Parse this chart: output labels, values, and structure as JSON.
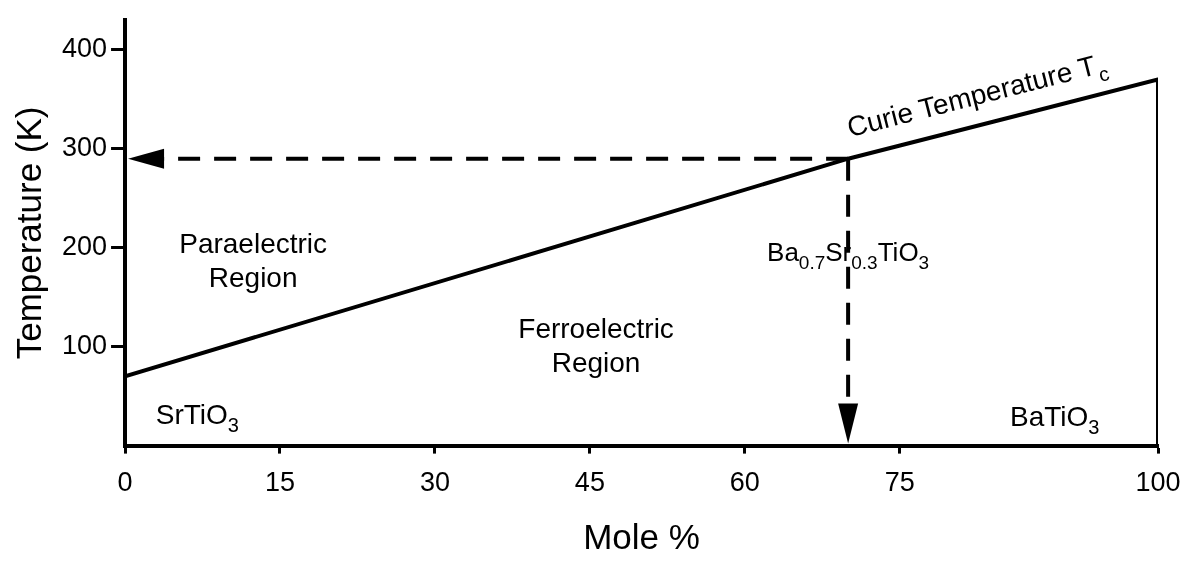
{
  "chart_data": {
    "type": "line",
    "xlabel": "Mole %",
    "ylabel": "Temperature (K)",
    "xlim": [
      0,
      100
    ],
    "ylim": [
      0,
      430
    ],
    "xticks": [
      0,
      15,
      30,
      45,
      60,
      75,
      100
    ],
    "yticks": [
      100,
      200,
      300,
      400
    ],
    "grid": false,
    "legend": false,
    "marker": "none",
    "line_style": "solid",
    "series": [
      {
        "color": "#000000",
        "x": [
          0,
          70,
          100,
          100
        ],
        "values": [
          70,
          290,
          370,
          0
        ]
      }
    ],
    "ref_lines": [
      {
        "axis": "x",
        "value": 70,
        "line_style": "dashed",
        "label": "Ba$_{0.7}$Sr$_{0.3}$TiO$_{3}$"
      },
      {
        "axis": "y",
        "value": 290,
        "line_style": "dashed"
      }
    ],
    "annotations": [
      "Curie Temperature T$_{c}$",
      "Paraelectric\nRegion",
      "Ferroelectric\nRegion",
      "SrTiO$_{3}$",
      "BaTiO$_{3}$"
    ]
  }
}
